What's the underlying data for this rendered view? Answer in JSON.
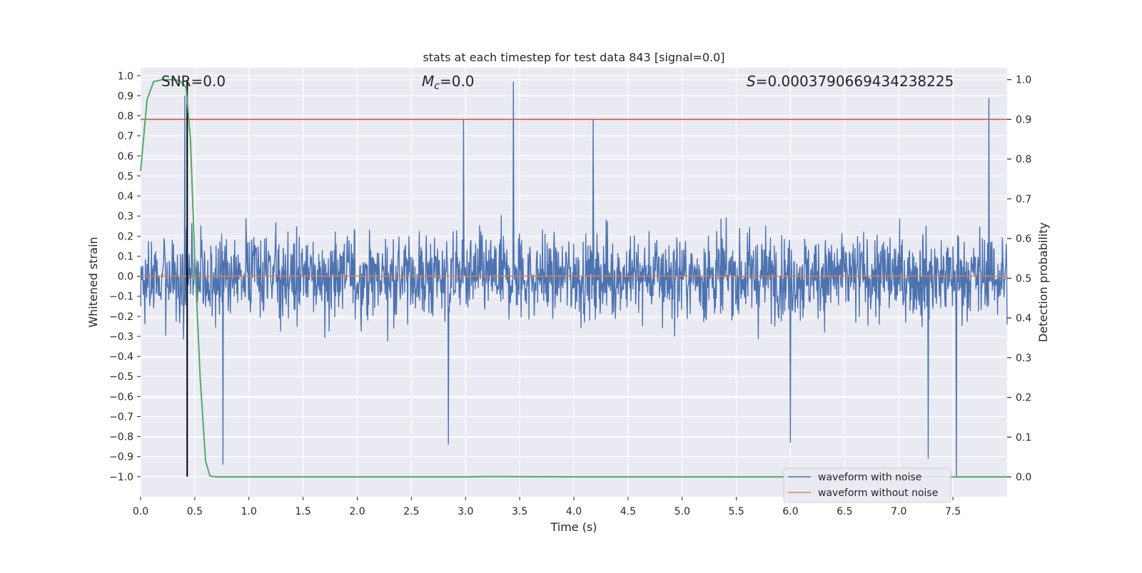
{
  "chart_data": {
    "type": "line",
    "title": "stats at each timestep for test data 843 [signal=0.0]",
    "xlabel": "Time (s)",
    "ylabel": "Whitened strain",
    "y2label": "Detection probability",
    "xlim": [
      0.0,
      8.0
    ],
    "ylim": [
      -1.1,
      1.04
    ],
    "y2lim": [
      -0.05,
      1.03
    ],
    "x_ticks": [
      0.0,
      0.5,
      1.0,
      1.5,
      2.0,
      2.5,
      3.0,
      3.5,
      4.0,
      4.5,
      5.0,
      5.5,
      6.0,
      6.5,
      7.0,
      7.5
    ],
    "x_tick_labels": [
      "0.0",
      "0.5",
      "1.0",
      "1.5",
      "2.0",
      "2.5",
      "3.0",
      "3.5",
      "4.0",
      "4.5",
      "5.0",
      "5.5",
      "6.0",
      "6.5",
      "7.0",
      "7.5"
    ],
    "y_ticks": [
      1.0,
      0.9,
      0.8,
      0.7,
      0.6,
      0.5,
      0.4,
      0.3,
      0.2,
      0.1,
      0.0,
      -0.1,
      -0.2,
      -0.3,
      -0.4,
      -0.5,
      -0.6,
      -0.7,
      -0.8,
      -0.9,
      -1.0
    ],
    "y_tick_labels": [
      "1.0",
      "0.9",
      "0.8",
      "0.7",
      "0.6",
      "0.5",
      "0.4",
      "0.3",
      "0.2",
      "0.1",
      "0.0",
      "−0.1",
      "−0.2",
      "−0.3",
      "−0.4",
      "−0.5",
      "−0.6",
      "−0.7",
      "−0.8",
      "−0.9",
      "−1.0"
    ],
    "y2_ticks": [
      1.0,
      0.9,
      0.8,
      0.7,
      0.6,
      0.5,
      0.4,
      0.3,
      0.2,
      0.1,
      0.0
    ],
    "y2_tick_labels": [
      "1.0",
      "0.9",
      "0.8",
      "0.7",
      "0.6",
      "0.5",
      "0.4",
      "0.3",
      "0.2",
      "0.1",
      "0.0"
    ],
    "annotations": {
      "snr": "SNR=0.0",
      "mc_symbol": "M",
      "mc_sub": "c",
      "mc_value": "=0.0",
      "s_symbol": "S",
      "s_value": "=0.000379066943423822​5"
    },
    "threshold_y2": 0.9,
    "marker_time": 0.43,
    "legend": {
      "placement": "bottom-right",
      "entries": [
        "waveform with noise",
        "waveform without noise"
      ]
    },
    "series": [
      {
        "name": "waveform with noise",
        "color": "#4c72b0",
        "kind": "noise",
        "sample_count": 2000,
        "envelope_pos": 0.42,
        "envelope_neg": -0.45,
        "peaks": [
          [
            0.41,
            0.9
          ],
          [
            3.44,
            0.97
          ],
          [
            7.83,
            0.89
          ],
          [
            2.98,
            0.78
          ],
          [
            4.18,
            0.78
          ],
          [
            0.76,
            -0.94
          ],
          [
            7.27,
            -0.91
          ],
          [
            7.53,
            -1.0
          ],
          [
            2.84,
            -0.84
          ],
          [
            6.0,
            -0.83
          ]
        ]
      },
      {
        "name": "waveform without noise",
        "color": "#dd8452",
        "x": [
          0.0,
          8.0
        ],
        "values": [
          0.0,
          0.0
        ]
      },
      {
        "name": "detection probability",
        "axis": "y2",
        "color": "#55a868",
        "x": [
          0.0,
          0.06,
          0.12,
          0.2,
          0.28,
          0.36,
          0.42,
          0.46,
          0.5,
          0.55,
          0.6,
          0.64,
          0.7,
          1.0,
          2.0,
          3.0,
          3.2,
          4.0,
          5.0,
          6.0,
          7.0,
          7.5,
          8.0
        ],
        "values": [
          0.77,
          0.95,
          0.995,
          1.0,
          1.0,
          0.998,
          0.98,
          0.85,
          0.55,
          0.25,
          0.04,
          0.002,
          0.0,
          0.0,
          0.0,
          0.0,
          0.001,
          0.0,
          0.0,
          0.0,
          0.0,
          0.0,
          0.0
        ]
      }
    ],
    "colors": {
      "background": "#eaeaf2",
      "grid": "#ffffff",
      "threshold": "#c44e52",
      "marker": "#000000"
    }
  }
}
